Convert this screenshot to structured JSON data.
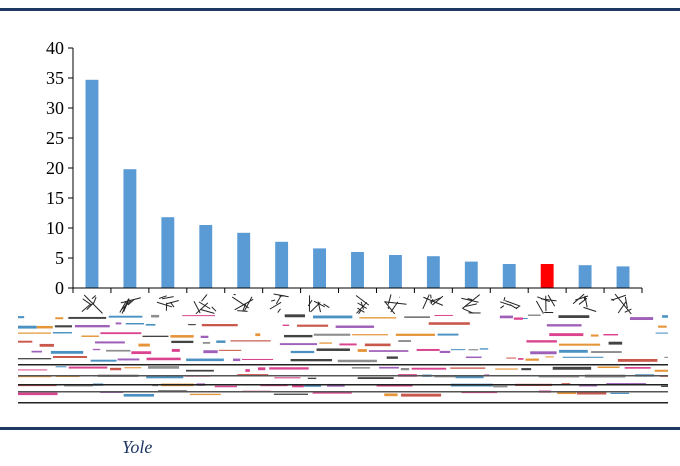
{
  "source": "Yole",
  "colors": {
    "bar": "#5b9bd5",
    "highlight": "#ff0000",
    "rule": "#1f3864",
    "axis": "#000000"
  },
  "chart_data": {
    "type": "bar",
    "categories": [
      "",
      "",
      "",
      "",
      "",
      "",
      "",
      "",
      "",
      "",
      "",
      "",
      "",
      "",
      ""
    ],
    "values": [
      34.7,
      19.8,
      11.8,
      10.5,
      9.2,
      7.7,
      6.6,
      6.0,
      5.5,
      5.3,
      4.4,
      4.0,
      4.0,
      3.8,
      3.6
    ],
    "highlight_index": 12,
    "ylim": [
      0,
      40
    ],
    "yticks": [
      0,
      5,
      10,
      15,
      20,
      25,
      30,
      35,
      40
    ],
    "grid": false,
    "title": "",
    "xlabel": "",
    "ylabel": ""
  }
}
